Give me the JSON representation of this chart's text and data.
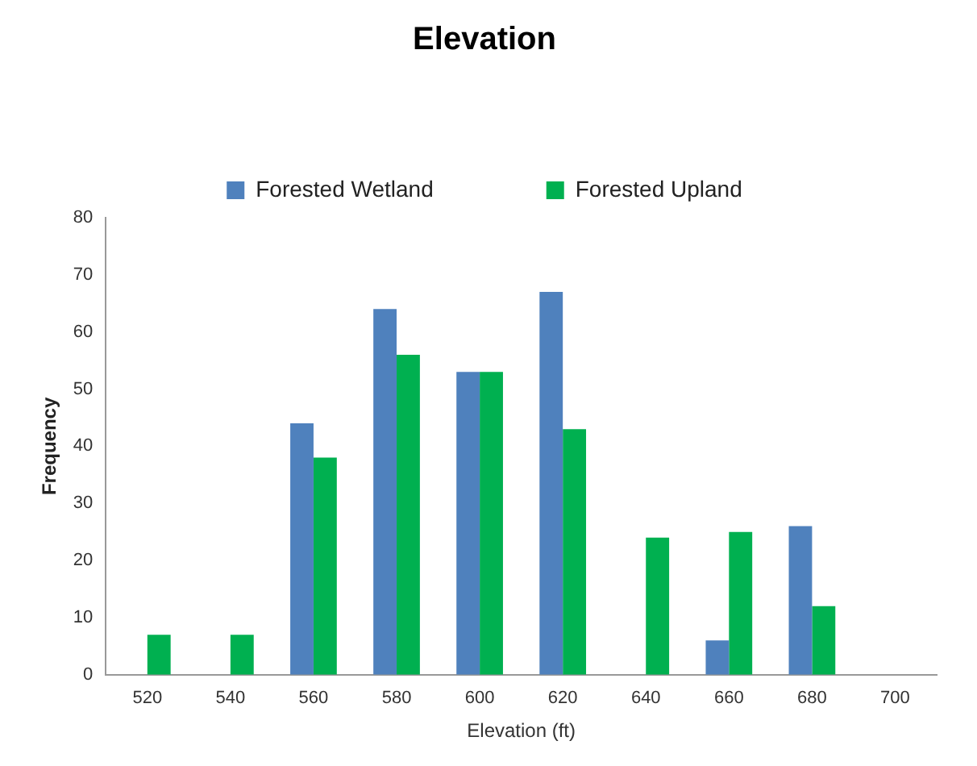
{
  "chart_data": {
    "type": "bar",
    "title": "Elevation",
    "xlabel": "Elevation (ft)",
    "ylabel": "Frequency",
    "categories": [
      "520",
      "540",
      "560",
      "580",
      "600",
      "620",
      "640",
      "660",
      "680",
      "700"
    ],
    "series": [
      {
        "name": "Forested Wetland",
        "color": "#4f81bd",
        "values": [
          0,
          0,
          44,
          64,
          53,
          67,
          0,
          6,
          26,
          0
        ]
      },
      {
        "name": "Forested Upland",
        "color": "#00b050",
        "values": [
          7,
          7,
          38,
          56,
          53,
          43,
          24,
          25,
          12,
          0
        ]
      }
    ],
    "ylim": [
      0,
      80
    ],
    "yticks": [
      0,
      10,
      20,
      30,
      40,
      50,
      60,
      70,
      80
    ],
    "grid": false,
    "legend": "top"
  }
}
